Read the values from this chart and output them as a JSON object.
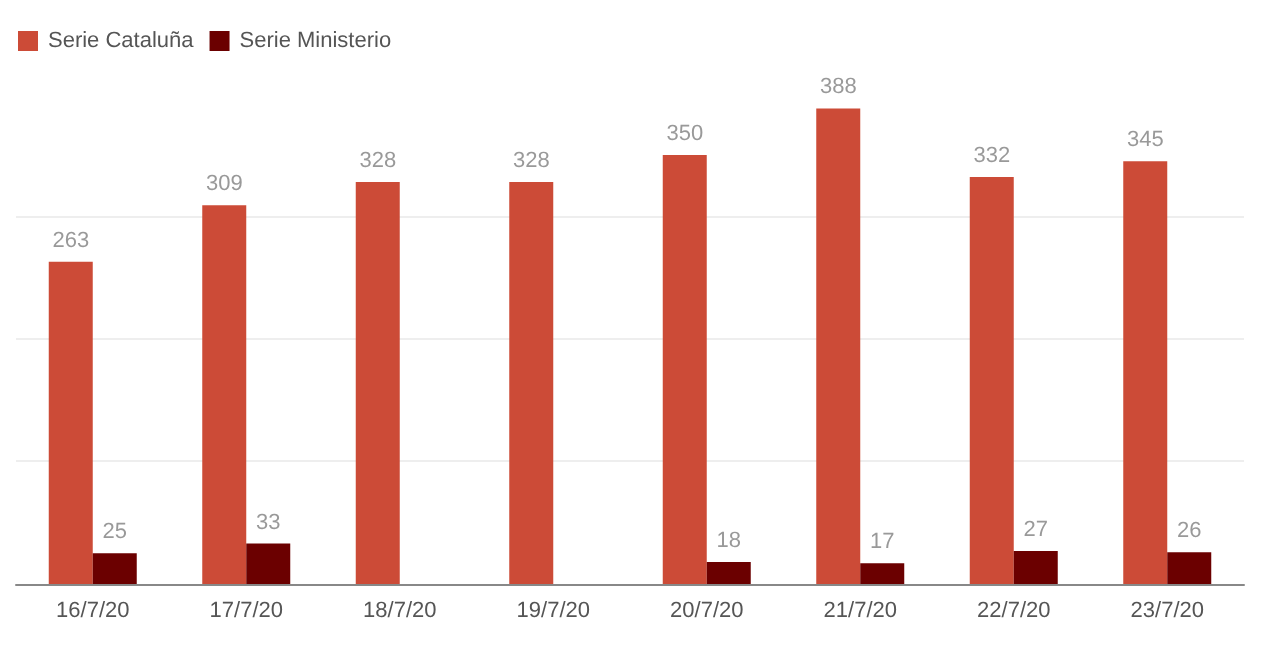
{
  "chart_data": {
    "type": "bar",
    "categories": [
      "16/7/20",
      "17/7/20",
      "18/7/20",
      "19/7/20",
      "20/7/20",
      "21/7/20",
      "22/7/20",
      "23/7/20"
    ],
    "series": [
      {
        "name": "Serie Cataluña",
        "color": "#cc4b37",
        "values": [
          263,
          309,
          328,
          328,
          350,
          388,
          332,
          345
        ]
      },
      {
        "name": "Serie Ministerio",
        "color": "#6b0000",
        "values": [
          25,
          33,
          null,
          null,
          18,
          17,
          27,
          26
        ]
      }
    ],
    "ylim": [
      0,
      390
    ],
    "yticks": [
      0,
      100,
      200,
      300
    ],
    "grid": "y",
    "tick_labels": "x",
    "data_labels": true,
    "legend": "top left"
  }
}
